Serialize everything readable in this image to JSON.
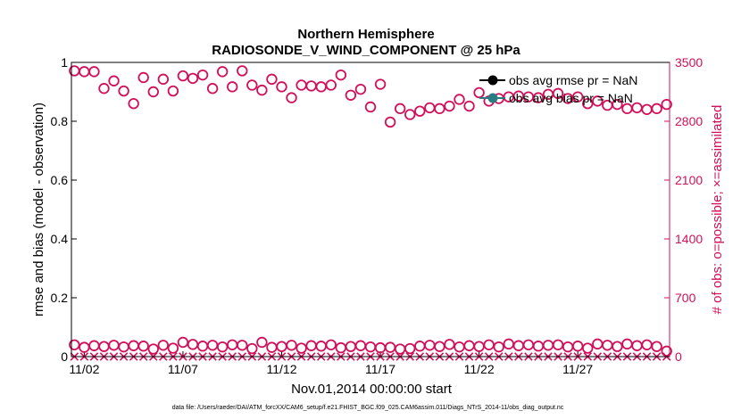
{
  "chart_data": {
    "type": "scatter",
    "title": "Northern Hemisphere",
    "subtitle": "RADIOSONDE_V_WIND_COMPONENT @ 25 hPa",
    "xlabel": "Nov.01,2014 00:00:00 start",
    "ylabel": "rmse and bias (model - observation)",
    "ylabel_right": "# of obs: o=possible; ×=assimilated",
    "footnote": "data file: /Users/raeder/DAI/ATM_forcXX/CAM6_setup/f.e21.FHIST_BGC.f09_025.CAM6assim.011/Diags_NTrS_2014-11/obs_diag_output.nc",
    "xlim": [
      1.35,
      31.65
    ],
    "ylim": [
      0,
      1
    ],
    "ylim_right": [
      0,
      3500
    ],
    "x_ticks": [
      2,
      7,
      12,
      17,
      22,
      27
    ],
    "x_tick_labels": [
      "11/02",
      "11/07",
      "11/12",
      "11/17",
      "11/22",
      "11/27"
    ],
    "y_ticks": [
      0,
      0.2,
      0.4,
      0.6,
      0.8,
      1
    ],
    "y_tick_labels": [
      "0",
      "0.2",
      "0.4",
      "0.6",
      "0.8",
      "1"
    ],
    "y_right_ticks": [
      0,
      700,
      1400,
      2100,
      2800,
      3500
    ],
    "y_right_tick_labels": [
      "0",
      "700",
      "1400",
      "2100",
      "2800",
      "3500"
    ],
    "colors": {
      "rmse": "#000000",
      "bias": "#2b7d84",
      "obs_count": "#d0105a"
    },
    "legend": [
      {
        "name": "obs avg rmse pr = NaN",
        "marker": "filled-circle",
        "color": "#000000"
      },
      {
        "name": "obs avg bias pr = NaN",
        "marker": "filled-circle",
        "color": "#2b7d84"
      }
    ],
    "series": [
      {
        "name": "possible (upper cycle)",
        "axis": "right",
        "marker": "open-circle",
        "x": [
          1.5,
          2,
          2.5,
          3,
          3.5,
          4,
          4.5,
          5,
          5.5,
          6,
          6.5,
          7,
          7.5,
          8,
          8.5,
          9,
          9.5,
          10,
          10.5,
          11,
          11.5,
          12,
          12.5,
          13,
          13.5,
          14,
          14.5,
          15,
          15.5,
          16,
          16.5,
          17,
          17.5,
          18,
          18.5,
          19,
          19.5,
          20,
          20.5,
          21,
          21.5,
          22,
          22.5,
          23,
          23.5,
          24,
          24.5,
          25,
          25.5,
          26,
          26.5,
          27,
          27.5,
          28,
          28.5,
          29,
          29.5,
          30,
          30.5,
          31,
          31.5
        ],
        "values": [
          3400,
          3390,
          3390,
          3190,
          3280,
          3160,
          3010,
          3320,
          3150,
          3300,
          3160,
          3340,
          3310,
          3350,
          3190,
          3390,
          3210,
          3400,
          3230,
          3170,
          3300,
          3210,
          3080,
          3230,
          3220,
          3210,
          3230,
          3350,
          3110,
          3180,
          2970,
          3240,
          2790,
          2950,
          2880,
          2920,
          2960,
          2950,
          2980,
          3060,
          2980,
          3140,
          3040,
          3070,
          3090,
          3100,
          3090,
          3080,
          3120,
          3130,
          3070,
          3090,
          3010,
          3040,
          2990,
          3000,
          2950,
          2960,
          2940,
          2950,
          3000
        ]
      },
      {
        "name": "possible (lower cycle)",
        "axis": "right",
        "marker": "open-circle",
        "x": [
          1.5,
          2,
          2.5,
          3,
          3.5,
          4,
          4.5,
          5,
          5.5,
          6,
          6.5,
          7,
          7.5,
          8,
          8.5,
          9,
          9.5,
          10,
          10.5,
          11,
          11.5,
          12,
          12.5,
          13,
          13.5,
          14,
          14.5,
          15,
          15.5,
          16,
          16.5,
          17,
          17.5,
          18,
          18.5,
          19,
          19.5,
          20,
          20.5,
          21,
          21.5,
          22,
          22.5,
          23,
          23.5,
          24,
          24.5,
          25,
          25.5,
          26,
          26.5,
          27,
          27.5,
          28,
          28.5,
          29,
          29.5,
          30,
          30.5,
          31,
          31.5
        ],
        "values": [
          140,
          110,
          130,
          120,
          135,
          115,
          130,
          125,
          90,
          135,
          100,
          170,
          145,
          125,
          135,
          115,
          140,
          135,
          95,
          170,
          110,
          120,
          135,
          100,
          130,
          125,
          140,
          105,
          120,
          130,
          115,
          105,
          110,
          90,
          95,
          125,
          135,
          120,
          145,
          115,
          130,
          120,
          140,
          115,
          150,
          130,
          140,
          125,
          135,
          140,
          115,
          125,
          100,
          150,
          135,
          120,
          150,
          130,
          140,
          120,
          65
        ]
      },
      {
        "name": "assimilated",
        "axis": "right",
        "marker": "x",
        "x": [
          1.5,
          2,
          2.5,
          3,
          3.5,
          4,
          4.5,
          5,
          5.5,
          6,
          6.5,
          7,
          7.5,
          8,
          8.5,
          9,
          9.5,
          10,
          10.5,
          11,
          11.5,
          12,
          12.5,
          13,
          13.5,
          14,
          14.5,
          15,
          15.5,
          16,
          16.5,
          17,
          17.5,
          18,
          18.5,
          19,
          19.5,
          20,
          20.5,
          21,
          21.5,
          22,
          22.5,
          23,
          23.5,
          24,
          24.5,
          25,
          25.5,
          26,
          26.5,
          27,
          27.5,
          28,
          28.5,
          29,
          29.5,
          30,
          30.5,
          31,
          31.5
        ],
        "values": [
          0,
          0,
          0,
          0,
          0,
          0,
          0,
          0,
          0,
          0,
          0,
          0,
          0,
          0,
          0,
          0,
          0,
          0,
          0,
          0,
          0,
          0,
          0,
          0,
          0,
          0,
          0,
          0,
          0,
          0,
          0,
          0,
          0,
          0,
          0,
          0,
          0,
          0,
          0,
          0,
          0,
          0,
          0,
          0,
          0,
          0,
          0,
          0,
          0,
          0,
          0,
          0,
          0,
          0,
          0,
          0,
          0,
          0,
          0,
          0,
          0
        ]
      }
    ]
  }
}
